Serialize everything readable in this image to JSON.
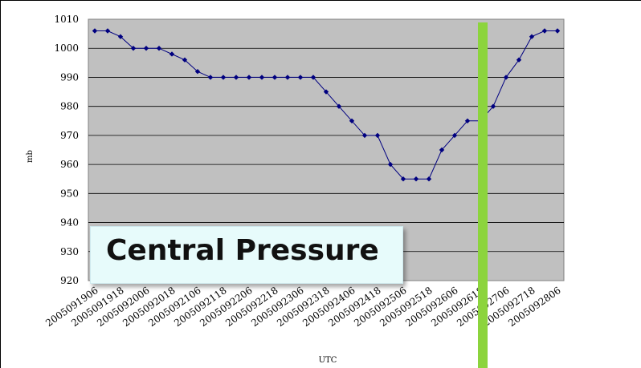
{
  "overlay_label": "Central Pressure",
  "colors": {
    "plot_bg": "#c0c0c0",
    "series": "#000080",
    "marker": "#8cd43d",
    "label_box": "#e7fbfb"
  },
  "chart_data": {
    "type": "line",
    "xlabel": "UTC",
    "ylabel": "mb",
    "ylim": [
      920,
      1010
    ],
    "yticks": [
      920,
      930,
      940,
      950,
      960,
      970,
      980,
      990,
      1000,
      1010
    ],
    "grid": true,
    "x": [
      "2005091906",
      "2005091912",
      "2005091918",
      "2005092000",
      "2005092006",
      "2005092012",
      "2005092018",
      "2005092100",
      "2005092106",
      "2005092112",
      "2005092118",
      "2005092200",
      "2005092206",
      "2005092212",
      "2005092218",
      "2005092300",
      "2005092306",
      "2005092312",
      "2005092318",
      "2005092400",
      "2005092406",
      "2005092412",
      "2005092418",
      "2005092500",
      "2005092506",
      "2005092512",
      "2005092518",
      "2005092600",
      "2005092606",
      "2005092612",
      "2005092618",
      "2005092700",
      "2005092706",
      "2005092712",
      "2005092718",
      "2005092800",
      "2005092806"
    ],
    "xtick_labels": [
      "2005091906",
      "2005091918",
      "2005092006",
      "2005092018",
      "2005092106",
      "2005092118",
      "2005092206",
      "2005092218",
      "2005092306",
      "2005092318",
      "2005092406",
      "2005092418",
      "2005092506",
      "2005092518",
      "2005092606",
      "2005092618",
      "2005092706",
      "2005092718",
      "2005092806"
    ],
    "values": [
      1006,
      1006,
      1004,
      1000,
      1000,
      1000,
      998,
      996,
      992,
      990,
      990,
      990,
      990,
      990,
      990,
      990,
      990,
      990,
      985,
      980,
      975,
      970,
      970,
      960,
      955,
      955,
      955,
      965,
      970,
      975,
      975,
      980,
      990,
      996,
      1004,
      1006,
      1006
    ]
  }
}
